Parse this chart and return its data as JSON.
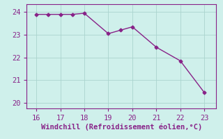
{
  "x": [
    16,
    16.5,
    17,
    17.5,
    18,
    19,
    19.5,
    20,
    21,
    22,
    23
  ],
  "y": [
    23.9,
    23.9,
    23.9,
    23.9,
    23.95,
    23.05,
    23.2,
    23.35,
    22.45,
    21.85,
    20.45
  ],
  "line_color": "#882288",
  "marker": "D",
  "marker_size": 2.5,
  "bg_color": "#cff0eb",
  "grid_color": "#aad4ce",
  "xlabel": "Windchill (Refroidissement éolien,°C)",
  "xlim": [
    15.6,
    23.5
  ],
  "ylim": [
    19.75,
    24.35
  ],
  "xticks": [
    16,
    17,
    18,
    19,
    20,
    21,
    22,
    23
  ],
  "yticks": [
    20,
    21,
    22,
    23,
    24
  ],
  "tick_color": "#882288",
  "label_color": "#882288",
  "fontsize": 7.5,
  "spine_color": "#882288"
}
